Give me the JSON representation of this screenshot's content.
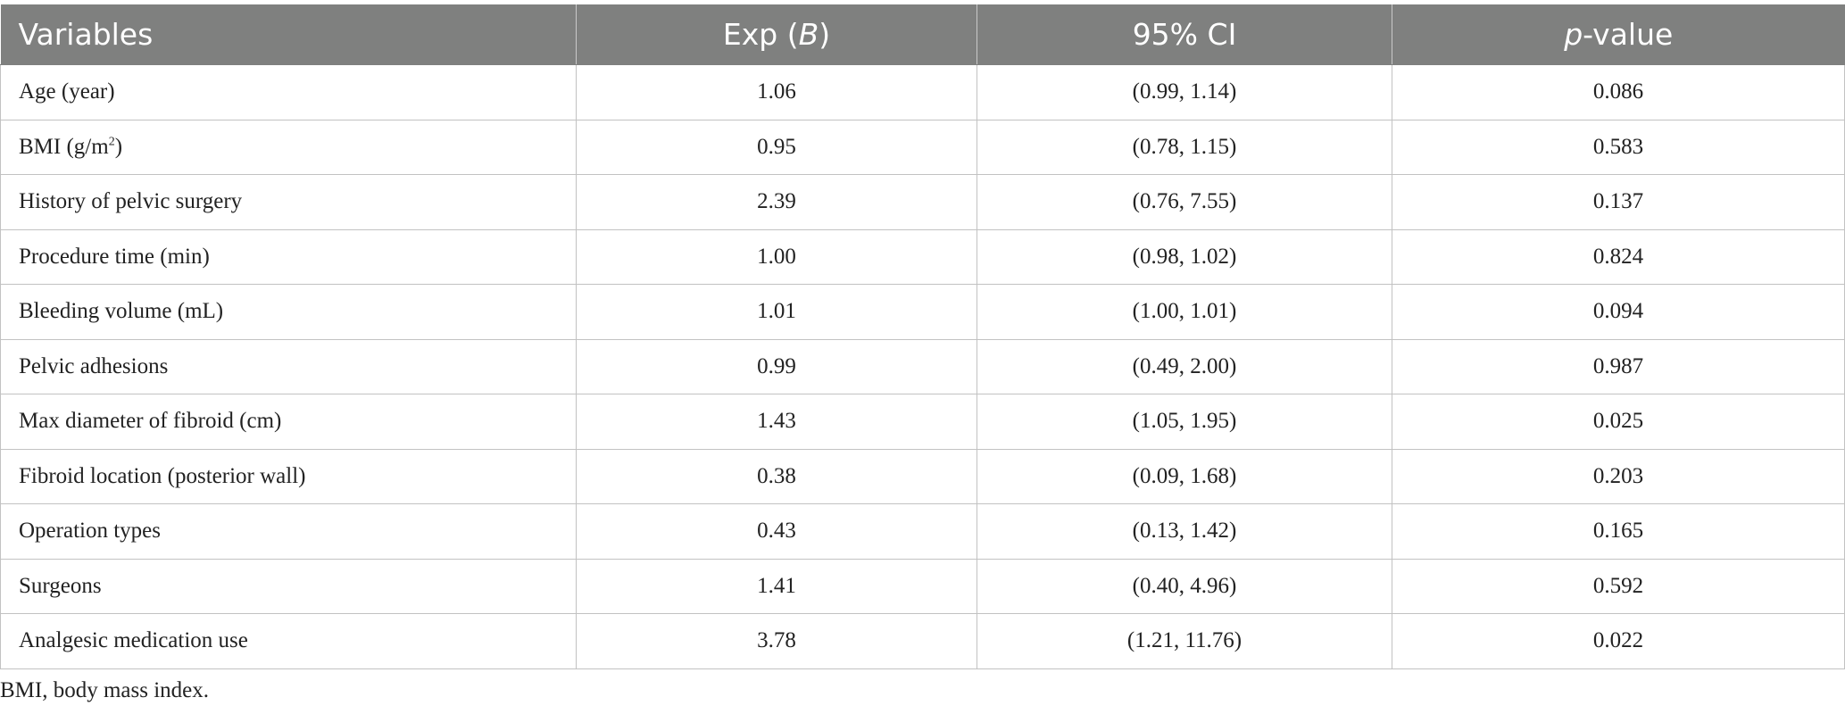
{
  "table": {
    "headers": {
      "variables": "Variables",
      "expb_prefix": "Exp (",
      "expb_var": "B",
      "expb_suffix": ")",
      "ci": "95% CI",
      "p_italic": "p",
      "p_rest": "-value"
    },
    "rows": [
      {
        "variable": "Age (year)",
        "expb": "1.06",
        "ci": "(0.99, 1.14)",
        "p": "0.086"
      },
      {
        "variable_prefix": "BMI (g/m",
        "variable_sup": "2",
        "variable_suffix": ")",
        "expb": "0.95",
        "ci": "(0.78, 1.15)",
        "p": "0.583"
      },
      {
        "variable": "History of pelvic surgery",
        "expb": "2.39",
        "ci": "(0.76, 7.55)",
        "p": "0.137"
      },
      {
        "variable": "Procedure time (min)",
        "expb": "1.00",
        "ci": "(0.98, 1.02)",
        "p": "0.824"
      },
      {
        "variable": "Bleeding volume (mL)",
        "expb": "1.01",
        "ci": "(1.00, 1.01)",
        "p": "0.094"
      },
      {
        "variable": "Pelvic adhesions",
        "expb": "0.99",
        "ci": "(0.49, 2.00)",
        "p": "0.987"
      },
      {
        "variable": "Max diameter of fibroid (cm)",
        "expb": "1.43",
        "ci": "(1.05, 1.95)",
        "p": "0.025"
      },
      {
        "variable": "Fibroid location (posterior wall)",
        "expb": "0.38",
        "ci": "(0.09, 1.68)",
        "p": "0.203"
      },
      {
        "variable": "Operation types",
        "expb": "0.43",
        "ci": "(0.13, 1.42)",
        "p": "0.165"
      },
      {
        "variable": "Surgeons",
        "expb": "1.41",
        "ci": "(0.40, 4.96)",
        "p": "0.592"
      },
      {
        "variable": "Analgesic medication use",
        "expb": "3.78",
        "ci": "(1.21, 11.76)",
        "p": "0.022"
      }
    ]
  },
  "footnote": "BMI, body mass index.",
  "colors": {
    "header_bg": "#7f807f",
    "header_text": "#ffffff",
    "grid_line": "#c2c2c2",
    "body_text": "#222222"
  }
}
